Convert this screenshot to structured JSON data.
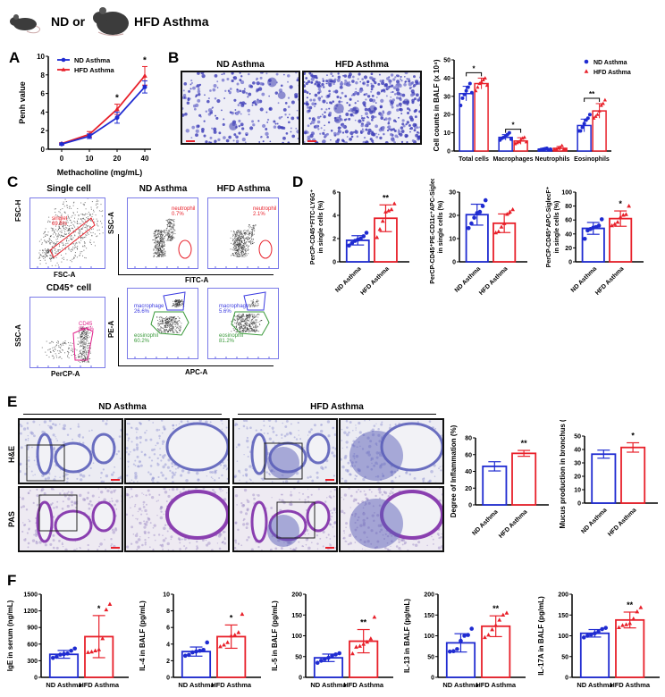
{
  "header": {
    "left_label": "ND or",
    "right_label": "HFD Asthma"
  },
  "colors": {
    "nd": "#1f2bd1",
    "hfd": "#e8202a",
    "flow_axis": "#6b6bea",
    "he_stain": "#7b7fc8",
    "pas_stain": "#9b4fb5"
  },
  "panels": {
    "A": "A",
    "B": "B",
    "C": "C",
    "D": "D",
    "E": "E",
    "F": "F"
  },
  "panelB": {
    "images": [
      {
        "title": "ND Asthma"
      },
      {
        "title": "HFD Asthma"
      }
    ]
  },
  "panelC": {
    "single_cell": {
      "title": "Single cell",
      "xlabel": "FSC-A",
      "ylabel": "FSC-H",
      "gate_label": "singlet",
      "gate_value": "69.8%",
      "xticks": [
        "0",
        "5,000,000",
        "10,000,000",
        "13,00"
      ]
    },
    "cd45_cell": {
      "title": "CD45⁺ cell",
      "xlabel": "PerCP-A",
      "ylabel": "SSC-A",
      "gate_label": "CD45",
      "gate_value": "86.4%"
    },
    "columns": [
      {
        "title": "ND Asthma"
      },
      {
        "title": "HFD Asthma"
      }
    ],
    "fitc_row": {
      "xlabel": "FITC-A",
      "ylabel": "SSC-A",
      "gates": [
        {
          "label": "neutrophil",
          "value": "0.7%"
        },
        {
          "label": "neutrophil",
          "value": "2.1%"
        }
      ]
    },
    "apc_row": {
      "xlabel": "APC-A",
      "ylabel": "PE-A",
      "gates": [
        {
          "mac_label": "macrophage",
          "mac_value": "26.6%",
          "eos_label": "eosinophil",
          "eos_value": "60.2%"
        },
        {
          "mac_label": "macrophage",
          "mac_value": "5.6%",
          "eos_label": "eosinophil",
          "eos_value": "81.2%"
        }
      ]
    }
  },
  "panelE": {
    "group_titles": [
      "ND Asthma",
      "HFD Asthma"
    ],
    "row_labels": [
      "H&E",
      "PAS"
    ]
  },
  "chart_data": [
    {
      "id": "A",
      "type": "line",
      "title": "",
      "xlabel": "Methacholine (mg/mL)",
      "ylabel": "Penh value",
      "categories": [
        "0",
        "10",
        "20",
        "40"
      ],
      "ylim": [
        0,
        10
      ],
      "yticks": [
        "0",
        "2",
        "4",
        "6",
        "8",
        "10"
      ],
      "series": [
        {
          "name": "ND Asthma",
          "values": [
            0.55,
            1.4,
            3.4,
            6.7
          ],
          "errors": [
            0.1,
            0.25,
            0.6,
            0.65
          ]
        },
        {
          "name": "HFD Asthma",
          "values": [
            0.6,
            1.6,
            4.3,
            7.9
          ],
          "errors": [
            0.1,
            0.3,
            0.55,
            1.0
          ]
        }
      ],
      "significance": [
        "",
        "",
        "*",
        "*"
      ],
      "legend": "top-left"
    },
    {
      "id": "B",
      "type": "bar",
      "ylabel": "Cell counts in BALF (x 10⁴)",
      "ylim": [
        0,
        50
      ],
      "yticks": [
        "0",
        "10",
        "20",
        "30",
        "40",
        "50"
      ],
      "categories": [
        "Total cells",
        "Macrophages",
        "Neutrophils",
        "Eosinophils"
      ],
      "series": [
        {
          "name": "ND Asthma",
          "values": [
            31.5,
            7.5,
            1.0,
            14.0
          ],
          "errors": [
            4.0,
            1.5,
            0.5,
            3.5
          ],
          "points": [
            [
              25,
              29,
              31,
              33,
              35,
              37,
              32
            ],
            [
              6,
              7,
              7.5,
              8,
              9,
              10,
              6.5
            ],
            [
              0.5,
              0.8,
              1,
              1.2,
              1.5,
              0.7,
              1
            ],
            [
              11,
              11,
              13,
              15,
              17,
              18,
              20
            ]
          ]
        },
        {
          "name": "HFD Asthma",
          "values": [
            37.0,
            5.5,
            1.5,
            22.0
          ],
          "errors": [
            3.0,
            1.8,
            1.0,
            4.0
          ],
          "points": [
            [
              33,
              35,
              37,
              38,
              39,
              40,
              36
            ],
            [
              4,
              4.5,
              5,
              6,
              7,
              7.5,
              5
            ],
            [
              0.5,
              1,
              1.5,
              2,
              3,
              1,
              0.8
            ],
            [
              18,
              19,
              20,
              22,
              25,
              26,
              28
            ]
          ]
        }
      ],
      "significance": [
        "*",
        "*",
        "",
        "**"
      ],
      "legend": "top-right"
    },
    {
      "id": "D1",
      "type": "bar",
      "ylabel_main": "PerCP-CD45⁺FITC-LY6G⁺",
      "ylabel_sub": "in single cells (%)",
      "ylim": [
        0,
        6
      ],
      "yticks": [
        "0",
        "2",
        "4",
        "6"
      ],
      "categories": [
        "ND Asthma",
        "HFD Asthma"
      ],
      "values": [
        1.85,
        3.75
      ],
      "errors": [
        0.4,
        1.15
      ],
      "points": [
        [
          1.4,
          1.6,
          1.8,
          1.9,
          2.0,
          2.2,
          2.5
        ],
        [
          2.1,
          2.8,
          3.5,
          4.3,
          4.4,
          4.5,
          5.0
        ]
      ],
      "significance": [
        "",
        "**"
      ]
    },
    {
      "id": "D2",
      "type": "bar",
      "ylabel_main": "PerCP-CD45⁺PE-CD11c⁺APC-SiglecF⁺",
      "ylabel_sub": "in single cells (%)",
      "ylim": [
        0,
        30
      ],
      "yticks": [
        "0",
        "10",
        "20",
        "30"
      ],
      "categories": [
        "ND Asthma",
        "HFD Asthma"
      ],
      "values": [
        20.3,
        16.6
      ],
      "errors": [
        4.5,
        4.0
      ],
      "points": [
        [
          14.5,
          16.5,
          19,
          21,
          21.5,
          24,
          26.5
        ],
        [
          12.5,
          13,
          15,
          16.5,
          20.5,
          21.5,
          22.5
        ]
      ],
      "significance": [
        "",
        ""
      ]
    },
    {
      "id": "D3",
      "type": "bar",
      "ylabel_main": "PerCP-CD45⁺APC-SiglecF⁺",
      "ylabel_sub": "in single cells (%)",
      "ylim": [
        0,
        100
      ],
      "yticks": [
        "0",
        "20",
        "40",
        "60",
        "80",
        "100"
      ],
      "categories": [
        "ND Asthma",
        "HFD Asthma"
      ],
      "values": [
        48,
        62
      ],
      "errors": [
        8.5,
        11
      ],
      "points": [
        [
          33,
          45,
          47,
          49,
          50,
          52,
          61
        ],
        [
          52,
          54,
          57,
          64,
          67,
          68,
          80
        ]
      ],
      "significance": [
        "",
        "*"
      ]
    },
    {
      "id": "E1",
      "type": "bar",
      "ylabel": "Degree of Inflammation (%)",
      "ylim": [
        0,
        80
      ],
      "yticks": [
        "0",
        "20",
        "40",
        "60",
        "80"
      ],
      "categories": [
        "ND Asthma",
        "HFD Asthma"
      ],
      "values": [
        46,
        61.5
      ],
      "errors": [
        5.5,
        3.5
      ],
      "significance": [
        "",
        "**"
      ]
    },
    {
      "id": "E2",
      "type": "bar",
      "ylabel": "Mucus production in bronchus (%)",
      "ylim": [
        0,
        50
      ],
      "yticks": [
        "0",
        "10",
        "20",
        "30",
        "40",
        "50"
      ],
      "categories": [
        "ND Asthma",
        "HFD Asthma"
      ],
      "values": [
        36.5,
        41.5
      ],
      "errors": [
        3.0,
        3.5
      ],
      "significance": [
        "",
        "*"
      ]
    },
    {
      "id": "F1",
      "type": "bar",
      "ylabel": "IgE in serum (ng/mL)",
      "ylim": [
        0,
        1500
      ],
      "yticks": [
        "0",
        "300",
        "600",
        "900",
        "1200",
        "1500"
      ],
      "categories": [
        "ND Asthma",
        "HFD Asthma"
      ],
      "values": [
        415,
        735
      ],
      "errors": [
        70,
        380
      ],
      "points": [
        [
          350,
          370,
          410,
          420,
          430,
          480,
          520
        ],
        [
          450,
          460,
          480,
          500,
          700,
          1220,
          1320
        ]
      ],
      "significance": [
        "",
        "*"
      ]
    },
    {
      "id": "F2",
      "type": "bar",
      "ylabel": "IL-4 in BALF (pg/mL)",
      "ylim": [
        0,
        10
      ],
      "yticks": [
        "0",
        "2",
        "4",
        "6",
        "8",
        "10"
      ],
      "categories": [
        "ND Asthma",
        "HFD Asthma"
      ],
      "values": [
        3.1,
        4.9
      ],
      "errors": [
        0.55,
        1.4
      ],
      "points": [
        [
          2.6,
          2.7,
          3.0,
          3.1,
          3.2,
          3.3,
          4.2
        ],
        [
          3.7,
          3.9,
          4.2,
          5.0,
          5.1,
          5.4,
          7.6
        ]
      ],
      "significance": [
        "",
        "*"
      ]
    },
    {
      "id": "F3",
      "type": "bar",
      "ylabel": "IL-5 in BALF (pg/mL)",
      "ylim": [
        0,
        200
      ],
      "yticks": [
        "0",
        "50",
        "100",
        "150",
        "200"
      ],
      "categories": [
        "ND Asthma",
        "HFD Asthma"
      ],
      "values": [
        47,
        87
      ],
      "errors": [
        9,
        28
      ],
      "points": [
        [
          35,
          40,
          44,
          47,
          52,
          55,
          58
        ],
        [
          57,
          73,
          75,
          80,
          85,
          93,
          145
        ]
      ],
      "significance": [
        "",
        "**"
      ]
    },
    {
      "id": "F4",
      "type": "bar",
      "ylabel": "IL-13 in BALF (pg/mL)",
      "ylim": [
        0,
        200
      ],
      "yticks": [
        "0",
        "50",
        "100",
        "150",
        "200"
      ],
      "categories": [
        "ND Asthma",
        "HFD Asthma"
      ],
      "values": [
        83,
        123
      ],
      "errors": [
        22,
        25
      ],
      "points": [
        [
          62,
          63,
          68,
          88,
          100,
          102,
          117
        ],
        [
          96,
          102,
          115,
          125,
          138,
          150,
          155
        ]
      ],
      "significance": [
        "",
        "**"
      ]
    },
    {
      "id": "F5",
      "type": "bar",
      "ylabel": "IL-17A in BALF (pg/mL)",
      "ylim": [
        0,
        200
      ],
      "yticks": [
        "0",
        "50",
        "100",
        "150",
        "200"
      ],
      "categories": [
        "ND Asthma",
        "HFD Asthma"
      ],
      "values": [
        106,
        138
      ],
      "errors": [
        9,
        19
      ],
      "points": [
        [
          96,
          100,
          103,
          106,
          110,
          116,
          119
        ],
        [
          120,
          125,
          127,
          130,
          141,
          158,
          168
        ]
      ],
      "significance": [
        "",
        "**"
      ]
    }
  ]
}
